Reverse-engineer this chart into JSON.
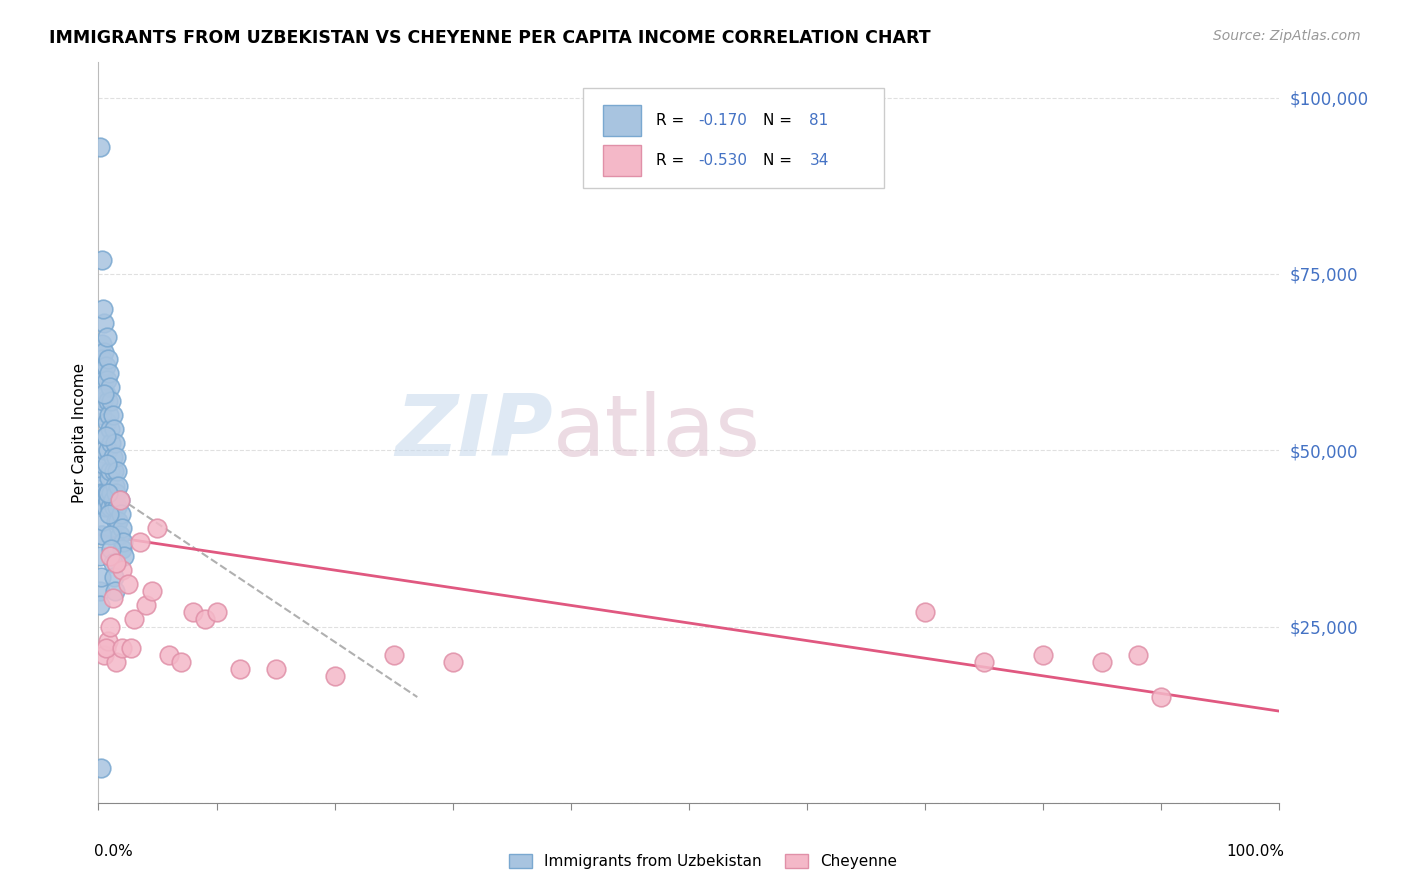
{
  "title": "IMMIGRANTS FROM UZBEKISTAN VS CHEYENNE PER CAPITA INCOME CORRELATION CHART",
  "source": "Source: ZipAtlas.com",
  "ylabel": "Per Capita Income",
  "xlim": [
    0.0,
    1.0
  ],
  "ylim": [
    0,
    105000
  ],
  "blue_color": "#a8c4e0",
  "blue_edge_color": "#7aa8d0",
  "pink_color": "#f4b8c8",
  "pink_edge_color": "#e090a8",
  "blue_line_color": "#2c5f8a",
  "pink_line_color": "#e05880",
  "dashed_line_color": "#b0b0b0",
  "ytick_color": "#4472c4",
  "grid_color": "#e0e0e0",
  "R1": "-0.170",
  "N1": "81",
  "R2": "-0.530",
  "N2": "34",
  "legend_label1": "Immigrants from Uzbekistan",
  "legend_label2": "Cheyenne",
  "blue_scatter_x": [
    0.001,
    0.001,
    0.001,
    0.001,
    0.001,
    0.002,
    0.002,
    0.002,
    0.002,
    0.003,
    0.003,
    0.003,
    0.003,
    0.003,
    0.004,
    0.004,
    0.004,
    0.004,
    0.005,
    0.005,
    0.005,
    0.005,
    0.005,
    0.006,
    0.006,
    0.006,
    0.006,
    0.007,
    0.007,
    0.007,
    0.007,
    0.008,
    0.008,
    0.008,
    0.008,
    0.009,
    0.009,
    0.009,
    0.01,
    0.01,
    0.01,
    0.01,
    0.011,
    0.011,
    0.011,
    0.012,
    0.012,
    0.012,
    0.013,
    0.013,
    0.013,
    0.014,
    0.014,
    0.015,
    0.015,
    0.015,
    0.016,
    0.016,
    0.017,
    0.017,
    0.018,
    0.018,
    0.019,
    0.02,
    0.02,
    0.021,
    0.022,
    0.003,
    0.004,
    0.005,
    0.006,
    0.007,
    0.008,
    0.009,
    0.01,
    0.011,
    0.012,
    0.013,
    0.014,
    0.001,
    0.002
  ],
  "blue_scatter_y": [
    93000,
    47000,
    45000,
    35000,
    30000,
    44000,
    43000,
    38000,
    32000,
    65000,
    63000,
    55000,
    42000,
    38000,
    61000,
    57000,
    48000,
    40000,
    68000,
    64000,
    60000,
    50000,
    44000,
    62000,
    58000,
    52000,
    42000,
    66000,
    60000,
    54000,
    44000,
    63000,
    57000,
    50000,
    43000,
    61000,
    55000,
    46000,
    59000,
    53000,
    47000,
    42000,
    57000,
    51000,
    44000,
    55000,
    49000,
    43000,
    53000,
    47000,
    42000,
    51000,
    45000,
    49000,
    44000,
    40000,
    47000,
    42000,
    45000,
    40000,
    43000,
    38000,
    41000,
    39000,
    36000,
    37000,
    35000,
    77000,
    70000,
    58000,
    52000,
    48000,
    44000,
    41000,
    38000,
    36000,
    34000,
    32000,
    30000,
    28000,
    5000
  ],
  "pink_scatter_x": [
    0.005,
    0.008,
    0.01,
    0.012,
    0.015,
    0.018,
    0.02,
    0.025,
    0.03,
    0.035,
    0.04,
    0.045,
    0.05,
    0.06,
    0.07,
    0.08,
    0.09,
    0.1,
    0.12,
    0.15,
    0.2,
    0.25,
    0.3,
    0.7,
    0.75,
    0.8,
    0.85,
    0.88,
    0.9,
    0.006,
    0.01,
    0.015,
    0.02,
    0.028
  ],
  "pink_scatter_y": [
    21000,
    23000,
    35000,
    29000,
    20000,
    43000,
    33000,
    31000,
    26000,
    37000,
    28000,
    30000,
    39000,
    21000,
    20000,
    27000,
    26000,
    27000,
    19000,
    19000,
    18000,
    21000,
    20000,
    27000,
    20000,
    21000,
    20000,
    21000,
    15000,
    22000,
    25000,
    34000,
    22000,
    22000
  ],
  "blue_line_x": [
    0.001,
    0.022
  ],
  "blue_line_y": [
    47000,
    37000
  ],
  "pink_line_x": [
    0.0,
    1.0
  ],
  "pink_line_y": [
    38000,
    13000
  ],
  "dash_line_x": [
    0.002,
    0.27
  ],
  "dash_line_y": [
    45000,
    15000
  ]
}
